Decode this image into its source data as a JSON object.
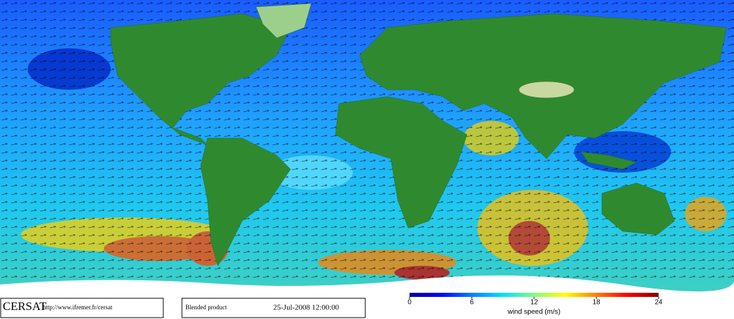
{
  "footer": {
    "logo": "CERSAT",
    "url": "http://www.ifremer.fr/cersat",
    "product": "Blended product",
    "date": "25-Jul-2008 12:00:00"
  },
  "colorbar": {
    "label": "wind speed (m/s)",
    "lim": [
      0,
      24
    ],
    "ticks": [
      0,
      6,
      12,
      18,
      24
    ],
    "colors": [
      "#00008b",
      "#0000ff",
      "#0080ff",
      "#00e0ff",
      "#80ff80",
      "#ffff00",
      "#ff8000",
      "#ff0000",
      "#800000"
    ]
  }
}
